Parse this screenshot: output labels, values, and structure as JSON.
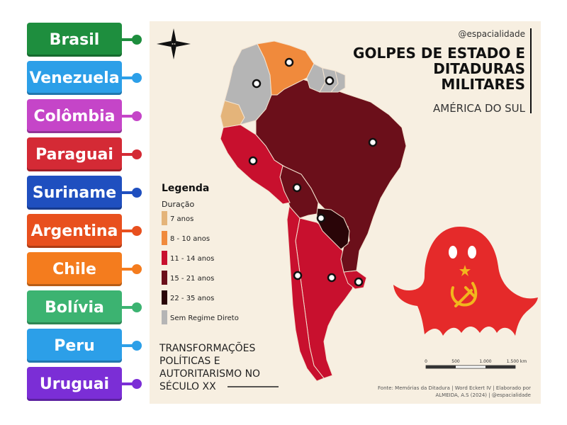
{
  "labels": [
    {
      "text": "Brasil",
      "color": "#1e8e3e",
      "dot": "#1e8e3e"
    },
    {
      "text": "Venezuela",
      "color": "#2c9fe8",
      "dot": "#2c9fe8"
    },
    {
      "text": "Colômbia",
      "color": "#c545c8",
      "dot": "#c545c8"
    },
    {
      "text": "Paraguai",
      "color": "#d42a35",
      "dot": "#d42a35"
    },
    {
      "text": "Suriname",
      "color": "#1f4fbf",
      "dot": "#1f4fbf"
    },
    {
      "text": "Argentina",
      "color": "#e8501e",
      "dot": "#e8501e"
    },
    {
      "text": "Chile",
      "color": "#f47c1e",
      "dot": "#f47c1e"
    },
    {
      "text": "Bolívia",
      "color": "#3cb371",
      "dot": "#3cb371"
    },
    {
      "text": "Peru",
      "color": "#2c9fe8",
      "dot": "#2c9fe8"
    },
    {
      "text": "Uruguai",
      "color": "#7b2ed6",
      "dot": "#7b2ed6"
    }
  ],
  "map": {
    "handle": "@espacialidade",
    "title_lines": [
      "GOLPES DE ESTADO E",
      "DITADURAS",
      "MILITARES"
    ],
    "subtitle": "AMÉRICA DO SUL",
    "legend": {
      "title": "Legenda",
      "subtitle": "Duração",
      "items": [
        {
          "label": "7 anos",
          "color": "#e4b47a"
        },
        {
          "label": "8 - 10 anos",
          "color": "#f08a3c"
        },
        {
          "label": "11 - 14 anos",
          "color": "#c8102e"
        },
        {
          "label": "15 - 21 anos",
          "color": "#6b0f1a"
        },
        {
          "label": "22 - 35 anos",
          "color": "#2a0508"
        },
        {
          "label": "Sem Regime Direto",
          "color": "#b5b5b5"
        }
      ]
    },
    "side_title_lines": [
      "TRANSFORMAÇÕES",
      "POLÍTICAS E",
      "AUTORITARISMO NO",
      "SÉCULO XX"
    ],
    "scale_labels": [
      "0",
      "500",
      "1.000",
      "1.500 km"
    ],
    "source_lines": [
      "Fonte: Memórias da Ditadura | Word Eckert IV | Elaborado por",
      "ALMEIDA, A.S (2024) | @espacialidade"
    ],
    "colors": {
      "background": "#f7efe1",
      "ghost": "#e52a2a",
      "emblem": "#f2b61d"
    }
  }
}
